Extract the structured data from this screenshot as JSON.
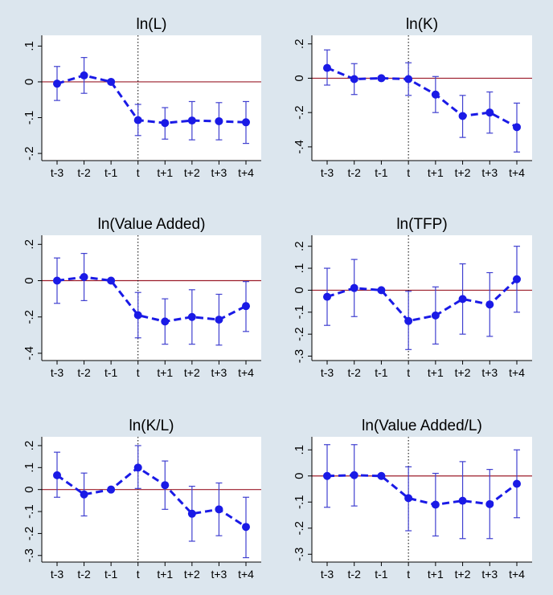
{
  "figure": {
    "x_categories": [
      "t-3",
      "t-2",
      "t-1",
      "t",
      "t+1",
      "t+2",
      "t+3",
      "t+4"
    ],
    "event_category": "t",
    "colors": {
      "background": "#dce6ee",
      "plot_bg": "#ffffff",
      "series": "#1a1ae6",
      "ci": "#4040d0",
      "zero_line": "#9b1c2a",
      "event_line": "#000000",
      "axis": "#000000"
    }
  },
  "chart_data": [
    {
      "type": "line",
      "title": "ln(L)",
      "categories": [
        "t-3",
        "t-2",
        "t-1",
        "t",
        "t+1",
        "t+2",
        "t+3",
        "t+4"
      ],
      "values": [
        -0.005,
        0.018,
        0.0,
        -0.107,
        -0.115,
        -0.108,
        -0.11,
        -0.113
      ],
      "ci_low": [
        -0.052,
        -0.032,
        0.0,
        -0.15,
        -0.16,
        -0.162,
        -0.162,
        -0.172
      ],
      "ci_high": [
        0.043,
        0.068,
        0.0,
        -0.063,
        -0.072,
        -0.055,
        -0.058,
        -0.055
      ],
      "ylim": [
        -0.22,
        0.13
      ],
      "y_ticks": [
        0.1,
        0,
        -0.1,
        -0.2
      ],
      "y_tick_labels": [
        ".1",
        "0",
        "-.1",
        "-.2"
      ]
    },
    {
      "type": "line",
      "title": "ln(K)",
      "categories": [
        "t-3",
        "t-2",
        "t-1",
        "t",
        "t+1",
        "t+2",
        "t+3",
        "t+4"
      ],
      "values": [
        0.06,
        -0.005,
        0.0,
        -0.005,
        -0.095,
        -0.22,
        -0.2,
        -0.285
      ],
      "ci_low": [
        -0.04,
        -0.095,
        0.0,
        -0.1,
        -0.2,
        -0.345,
        -0.32,
        -0.43
      ],
      "ci_high": [
        0.165,
        0.085,
        0.0,
        0.09,
        0.01,
        -0.1,
        -0.08,
        -0.145
      ],
      "ylim": [
        -0.48,
        0.25
      ],
      "y_ticks": [
        0.2,
        0,
        -0.2,
        -0.4
      ],
      "y_tick_labels": [
        ".2",
        "0",
        "-.2",
        "-.4"
      ]
    },
    {
      "type": "line",
      "title": "ln(Value Added)",
      "categories": [
        "t-3",
        "t-2",
        "t-1",
        "t",
        "t+1",
        "t+2",
        "t+3",
        "t+4"
      ],
      "values": [
        0.0,
        0.02,
        0.0,
        -0.19,
        -0.225,
        -0.2,
        -0.215,
        -0.14
      ],
      "ci_low": [
        -0.125,
        -0.11,
        0.0,
        -0.315,
        -0.35,
        -0.35,
        -0.355,
        -0.28
      ],
      "ci_high": [
        0.125,
        0.15,
        0.0,
        -0.065,
        -0.1,
        -0.05,
        -0.075,
        -0.005
      ],
      "ylim": [
        -0.44,
        0.25
      ],
      "y_ticks": [
        0.2,
        0,
        -0.2,
        -0.4
      ],
      "y_tick_labels": [
        ".2",
        "0",
        "-.2",
        "-.4"
      ]
    },
    {
      "type": "line",
      "title": "ln(TFP)",
      "categories": [
        "t-3",
        "t-2",
        "t-1",
        "t",
        "t+1",
        "t+2",
        "t+3",
        "t+4"
      ],
      "values": [
        -0.03,
        0.01,
        0.0,
        -0.14,
        -0.115,
        -0.04,
        -0.065,
        0.05
      ],
      "ci_low": [
        -0.16,
        -0.12,
        0.0,
        -0.27,
        -0.245,
        -0.2,
        -0.21,
        -0.1
      ],
      "ci_high": [
        0.1,
        0.14,
        0.0,
        -0.005,
        0.015,
        0.12,
        0.08,
        0.2
      ],
      "ylim": [
        -0.32,
        0.25
      ],
      "y_ticks": [
        0.2,
        0.1,
        0,
        -0.1,
        -0.2,
        -0.3
      ],
      "y_tick_labels": [
        ".2",
        ".1",
        "0",
        "-.1",
        "-.2",
        "-.3"
      ]
    },
    {
      "type": "line",
      "title": "ln(K/L)",
      "categories": [
        "t-3",
        "t-2",
        "t-1",
        "t",
        "t+1",
        "t+2",
        "t+3",
        "t+4"
      ],
      "values": [
        0.065,
        -0.022,
        0.0,
        0.1,
        0.02,
        -0.11,
        -0.09,
        -0.17
      ],
      "ci_low": [
        -0.035,
        -0.12,
        0.0,
        0.005,
        -0.09,
        -0.235,
        -0.21,
        -0.31
      ],
      "ci_high": [
        0.17,
        0.075,
        0.0,
        0.2,
        0.13,
        0.015,
        0.03,
        -0.035
      ],
      "ylim": [
        -0.33,
        0.24
      ],
      "y_ticks": [
        0.2,
        0.1,
        0,
        -0.1,
        -0.2,
        -0.3
      ],
      "y_tick_labels": [
        ".2",
        ".1",
        "0",
        "-.1",
        "-.2",
        "-.3"
      ]
    },
    {
      "type": "line",
      "title": "ln(Value Added/L)",
      "categories": [
        "t-3",
        "t-2",
        "t-1",
        "t",
        "t+1",
        "t+2",
        "t+3",
        "t+4"
      ],
      "values": [
        0.0,
        0.003,
        0.0,
        -0.085,
        -0.11,
        -0.095,
        -0.108,
        -0.03
      ],
      "ci_low": [
        -0.12,
        -0.115,
        0.0,
        -0.21,
        -0.23,
        -0.24,
        -0.24,
        -0.16
      ],
      "ci_high": [
        0.12,
        0.12,
        0.0,
        0.035,
        0.01,
        0.055,
        0.025,
        0.1
      ],
      "ylim": [
        -0.33,
        0.15
      ],
      "y_ticks": [
        0.1,
        0,
        -0.1,
        -0.2,
        -0.3
      ],
      "y_tick_labels": [
        ".1",
        "0",
        "-.1",
        "-.2",
        "-.3"
      ]
    }
  ]
}
